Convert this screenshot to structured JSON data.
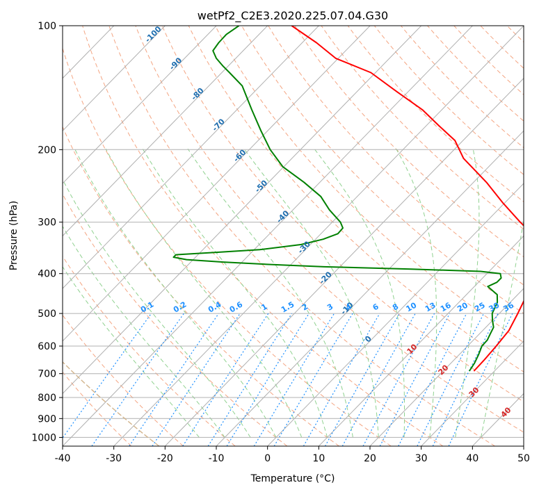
{
  "chart_data": {
    "type": "line",
    "chart_kind": "skew-t log-p diagram",
    "title": "wetPf2_C2E3.2020.225.07.04.G30",
    "xlabel": "Temperature (°C)",
    "ylabel": "Pressure (hPa)",
    "xlim": [
      -40,
      50
    ],
    "ylim": [
      1050,
      100
    ],
    "y_scale": "log",
    "grid": true,
    "x_ticks": [
      -40,
      -30,
      -20,
      -10,
      0,
      10,
      20,
      30,
      40,
      50
    ],
    "y_ticks": [
      100,
      200,
      300,
      400,
      500,
      600,
      700,
      800,
      900,
      1000
    ],
    "colors": {
      "temperature": "#ff0000",
      "dewpoint": "#008000",
      "isotherm": "#b0b0b0",
      "dry_adiabat": "#f4a582",
      "moist_adiabat": "#8fd18f",
      "mixing_ratio": "#1e90ff",
      "isotherm_label": "#1f6fb0",
      "dry_adiabat_label": "#d62728",
      "ice_curve": "#d2b48c"
    },
    "isotherm_labels": [
      -100,
      -90,
      -80,
      -70,
      -60,
      -50,
      -40,
      -30,
      -20,
      -10,
      0,
      10,
      20,
      30,
      40
    ],
    "mixing_ratio_labels": [
      "0.1",
      "0.2",
      "0.4",
      "0.6",
      "1",
      "1.5",
      "2",
      "3",
      "4",
      "6",
      "8",
      "10",
      "13",
      "16",
      "20",
      "25",
      "30",
      "36"
    ],
    "series": [
      {
        "key": "temperature",
        "p": [
          690,
          650,
          600,
          550,
          500,
          450,
          420,
          400,
          380,
          365,
          350,
          330,
          300,
          270,
          240,
          210,
          190,
          175,
          160,
          145,
          130,
          120,
          110,
          100
        ],
        "t": [
          26,
          25.9,
          25.6,
          25.1,
          23.6,
          21.8,
          21.7,
          20.2,
          19.3,
          19.6,
          17.9,
          13.4,
          6.7,
          -0.2,
          -7.5,
          -16.5,
          -21.6,
          -27.5,
          -33.8,
          -42,
          -50.9,
          -60.5,
          -67.2,
          -75.3
        ]
      },
      {
        "key": "dewpoint",
        "p": [
          690,
          660,
          630,
          600,
          580,
          560,
          540,
          520,
          500,
          470,
          450,
          430,
          420,
          410,
          400,
          395,
          390,
          385,
          380,
          375,
          370,
          365,
          360,
          355,
          350,
          340,
          330,
          320,
          310,
          300,
          280,
          260,
          240,
          220,
          200,
          180,
          160,
          140,
          130,
          125,
          120,
          115,
          110,
          105,
          100
        ],
        "t": [
          25.1,
          24.6,
          23.8,
          22.8,
          22.7,
          22.1,
          21.5,
          20,
          18.6,
          17.5,
          16,
          12.6,
          13.6,
          13.6,
          12.6,
          8.3,
          -5.7,
          -23.1,
          -34.4,
          -43.7,
          -51.3,
          -54.3,
          -54.3,
          -46.6,
          -38.9,
          -31.8,
          -28.5,
          -26.7,
          -26.8,
          -28.4,
          -32.9,
          -37.1,
          -43.1,
          -50.2,
          -55.9,
          -61.3,
          -67.1,
          -73.5,
          -78.5,
          -81.2,
          -83.8,
          -85.9,
          -86.3,
          -86.4,
          -85.6
        ]
      }
    ]
  }
}
